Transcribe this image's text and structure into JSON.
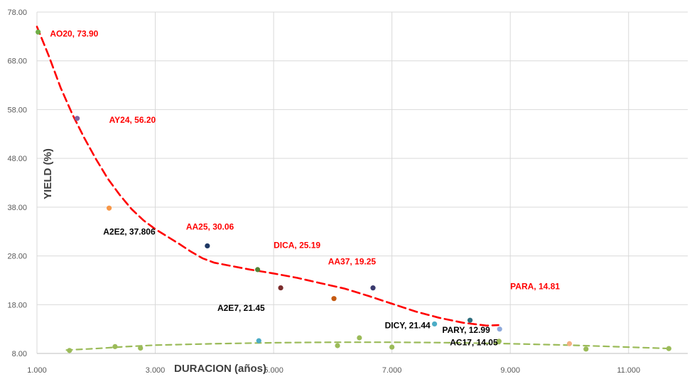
{
  "chart_data": {
    "type": "scatter",
    "title": "",
    "xlabel": "DURACION (años)",
    "ylabel": "YIELD (%)",
    "xlim": [
      1.0,
      12.0
    ],
    "ylim": [
      8.0,
      78.0
    ],
    "xticks": [
      1.0,
      3.0,
      5.0,
      7.0,
      9.0,
      11.0
    ],
    "xtick_labels": [
      "1.000",
      "3.000",
      "5.000",
      "7.000",
      "9.000",
      "11.000"
    ],
    "yticks": [
      8,
      18,
      28,
      38,
      48,
      58,
      68,
      78
    ],
    "ytick_labels": [
      "8.00",
      "18.00",
      "28.00",
      "38.00",
      "48.00",
      "58.00",
      "68.00",
      "78.00"
    ],
    "grid": true,
    "points": [
      {
        "x": 1.02,
        "y": 73.9,
        "color": "#70AD47"
      },
      {
        "x": 1.68,
        "y": 56.2,
        "color": "#8064A2"
      },
      {
        "x": 2.22,
        "y": 37.8,
        "color": "#F79646"
      },
      {
        "x": 3.88,
        "y": 30.06,
        "color": "#1F3864"
      },
      {
        "x": 4.73,
        "y": 25.19,
        "color": "#548235"
      },
      {
        "x": 5.12,
        "y": 21.45,
        "color": "#7B2C2C"
      },
      {
        "x": 6.02,
        "y": 19.25,
        "color": "#C55A11"
      },
      {
        "x": 6.68,
        "y": 21.44,
        "color": "#3A3A6E"
      },
      {
        "x": 7.72,
        "y": 14.05,
        "color": "#4BACC6"
      },
      {
        "x": 8.32,
        "y": 14.81,
        "color": "#2E6E7E"
      },
      {
        "x": 8.82,
        "y": 12.99,
        "color": "#8EA9DB"
      },
      {
        "x": 4.75,
        "y": 10.6,
        "color": "#4BACC6"
      },
      {
        "x": 1.55,
        "y": 8.6,
        "color": "#9BBB59"
      },
      {
        "x": 2.32,
        "y": 9.4,
        "color": "#9BBB59"
      },
      {
        "x": 2.75,
        "y": 9.1,
        "color": "#9BBB59"
      },
      {
        "x": 6.08,
        "y": 9.6,
        "color": "#9BBB59"
      },
      {
        "x": 6.45,
        "y": 11.2,
        "color": "#9BBB59"
      },
      {
        "x": 7.0,
        "y": 9.3,
        "color": "#9BBB59"
      },
      {
        "x": 8.81,
        "y": 10.5,
        "color": "#9BBB59"
      },
      {
        "x": 10.0,
        "y": 10.0,
        "color": "#F4B183"
      },
      {
        "x": 10.28,
        "y": 8.9,
        "color": "#9BBB59"
      },
      {
        "x": 11.68,
        "y": 9.0,
        "color": "#9BBB59"
      }
    ],
    "labels": [
      {
        "text": "AO20, 73.90",
        "x": 1.22,
        "y": 73.0,
        "color": "#FF0000"
      },
      {
        "text": "AY24, 56.20",
        "x": 2.22,
        "y": 55.3,
        "color": "#FF0000"
      },
      {
        "text": "A2E2, 37.806",
        "x": 2.12,
        "y": 32.4,
        "color": "#000000"
      },
      {
        "text": "AA25, 30.06",
        "x": 3.52,
        "y": 33.4,
        "color": "#FF0000"
      },
      {
        "text": "DICA, 25.19",
        "x": 5.0,
        "y": 29.6,
        "color": "#FF0000"
      },
      {
        "text": "AA37, 19.25",
        "x": 5.92,
        "y": 26.3,
        "color": "#FF0000"
      },
      {
        "text": "A2E7, 21.45",
        "x": 4.05,
        "y": 16.7,
        "color": "#000000"
      },
      {
        "text": "PARA, 14.81",
        "x": 9.0,
        "y": 21.2,
        "color": "#FF0000"
      },
      {
        "text": "DICY, 21.44",
        "x": 6.88,
        "y": 13.2,
        "color": "#000000"
      },
      {
        "text": "PARY, 12.99",
        "x": 7.85,
        "y": 12.2,
        "color": "#000000"
      },
      {
        "text": "AC17, 14.05",
        "x": 7.98,
        "y": 9.7,
        "color": "#000000"
      }
    ],
    "trendlines": [
      {
        "color": "#FF0000",
        "dash": "long",
        "points": [
          [
            1.0,
            75.0
          ],
          [
            1.2,
            69.0
          ],
          [
            1.4,
            62.5
          ],
          [
            1.6,
            57.0
          ],
          [
            1.8,
            52.2
          ],
          [
            2.0,
            47.8
          ],
          [
            2.2,
            43.8
          ],
          [
            2.4,
            40.5
          ],
          [
            2.6,
            37.6
          ],
          [
            2.8,
            35.3
          ],
          [
            3.0,
            33.5
          ],
          [
            3.2,
            32.0
          ],
          [
            3.4,
            30.5
          ],
          [
            3.6,
            28.9
          ],
          [
            3.8,
            27.5
          ],
          [
            4.0,
            26.6
          ],
          [
            4.3,
            25.9
          ],
          [
            4.6,
            25.2
          ],
          [
            5.0,
            24.4
          ],
          [
            5.4,
            23.5
          ],
          [
            5.8,
            22.4
          ],
          [
            6.2,
            21.3
          ],
          [
            6.6,
            19.8
          ],
          [
            7.0,
            18.2
          ],
          [
            7.4,
            16.6
          ],
          [
            7.8,
            15.3
          ],
          [
            8.2,
            14.3
          ],
          [
            8.6,
            13.7
          ],
          [
            8.8,
            13.8
          ]
        ]
      },
      {
        "color": "#9BBB59",
        "dash": "medium",
        "points": [
          [
            1.5,
            8.7
          ],
          [
            2.0,
            9.0
          ],
          [
            2.5,
            9.4
          ],
          [
            3.0,
            9.7
          ],
          [
            4.0,
            10.0
          ],
          [
            5.0,
            10.2
          ],
          [
            6.0,
            10.3
          ],
          [
            7.0,
            10.3
          ],
          [
            8.0,
            10.2
          ],
          [
            9.0,
            10.0
          ],
          [
            10.0,
            9.7
          ],
          [
            11.0,
            9.3
          ],
          [
            11.7,
            9.0
          ]
        ]
      }
    ]
  }
}
